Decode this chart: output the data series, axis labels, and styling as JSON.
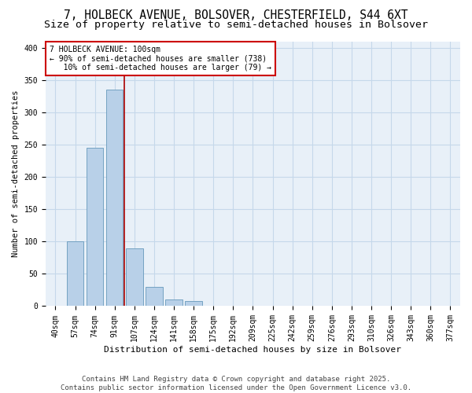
{
  "title1": "7, HOLBECK AVENUE, BOLSOVER, CHESTERFIELD, S44 6XT",
  "title2": "Size of property relative to semi-detached houses in Bolsover",
  "xlabel": "Distribution of semi-detached houses by size in Bolsover",
  "ylabel": "Number of semi-detached properties",
  "categories": [
    "40sqm",
    "57sqm",
    "74sqm",
    "91sqm",
    "107sqm",
    "124sqm",
    "141sqm",
    "158sqm",
    "175sqm",
    "192sqm",
    "209sqm",
    "225sqm",
    "242sqm",
    "259sqm",
    "276sqm",
    "293sqm",
    "310sqm",
    "326sqm",
    "343sqm",
    "360sqm",
    "377sqm"
  ],
  "values": [
    0,
    100,
    245,
    335,
    90,
    30,
    10,
    8,
    0,
    0,
    0,
    0,
    0,
    0,
    0,
    0,
    0,
    0,
    0,
    0,
    0
  ],
  "bar_color": "#b8d0e8",
  "bar_edge_color": "#6699bb",
  "bar_width": 0.85,
  "vline_x": 3.5,
  "vline_color": "#aa0000",
  "annotation_line1": "7 HOLBECK AVENUE: 100sqm",
  "annotation_line2": "← 90% of semi-detached houses are smaller (738)",
  "annotation_line3": "   10% of semi-detached houses are larger (79) →",
  "annotation_box_color": "#cc0000",
  "ylim": [
    0,
    410
  ],
  "yticks": [
    0,
    50,
    100,
    150,
    200,
    250,
    300,
    350,
    400
  ],
  "grid_color": "#c5d8ea",
  "bg_color": "#e8f0f8",
  "footer1": "Contains HM Land Registry data © Crown copyright and database right 2025.",
  "footer2": "Contains public sector information licensed under the Open Government Licence v3.0.",
  "title1_fontsize": 10.5,
  "title2_fontsize": 9.5,
  "xlabel_fontsize": 8,
  "ylabel_fontsize": 7.5,
  "tick_fontsize": 7,
  "annotation_fontsize": 7,
  "footer_fontsize": 6.5
}
